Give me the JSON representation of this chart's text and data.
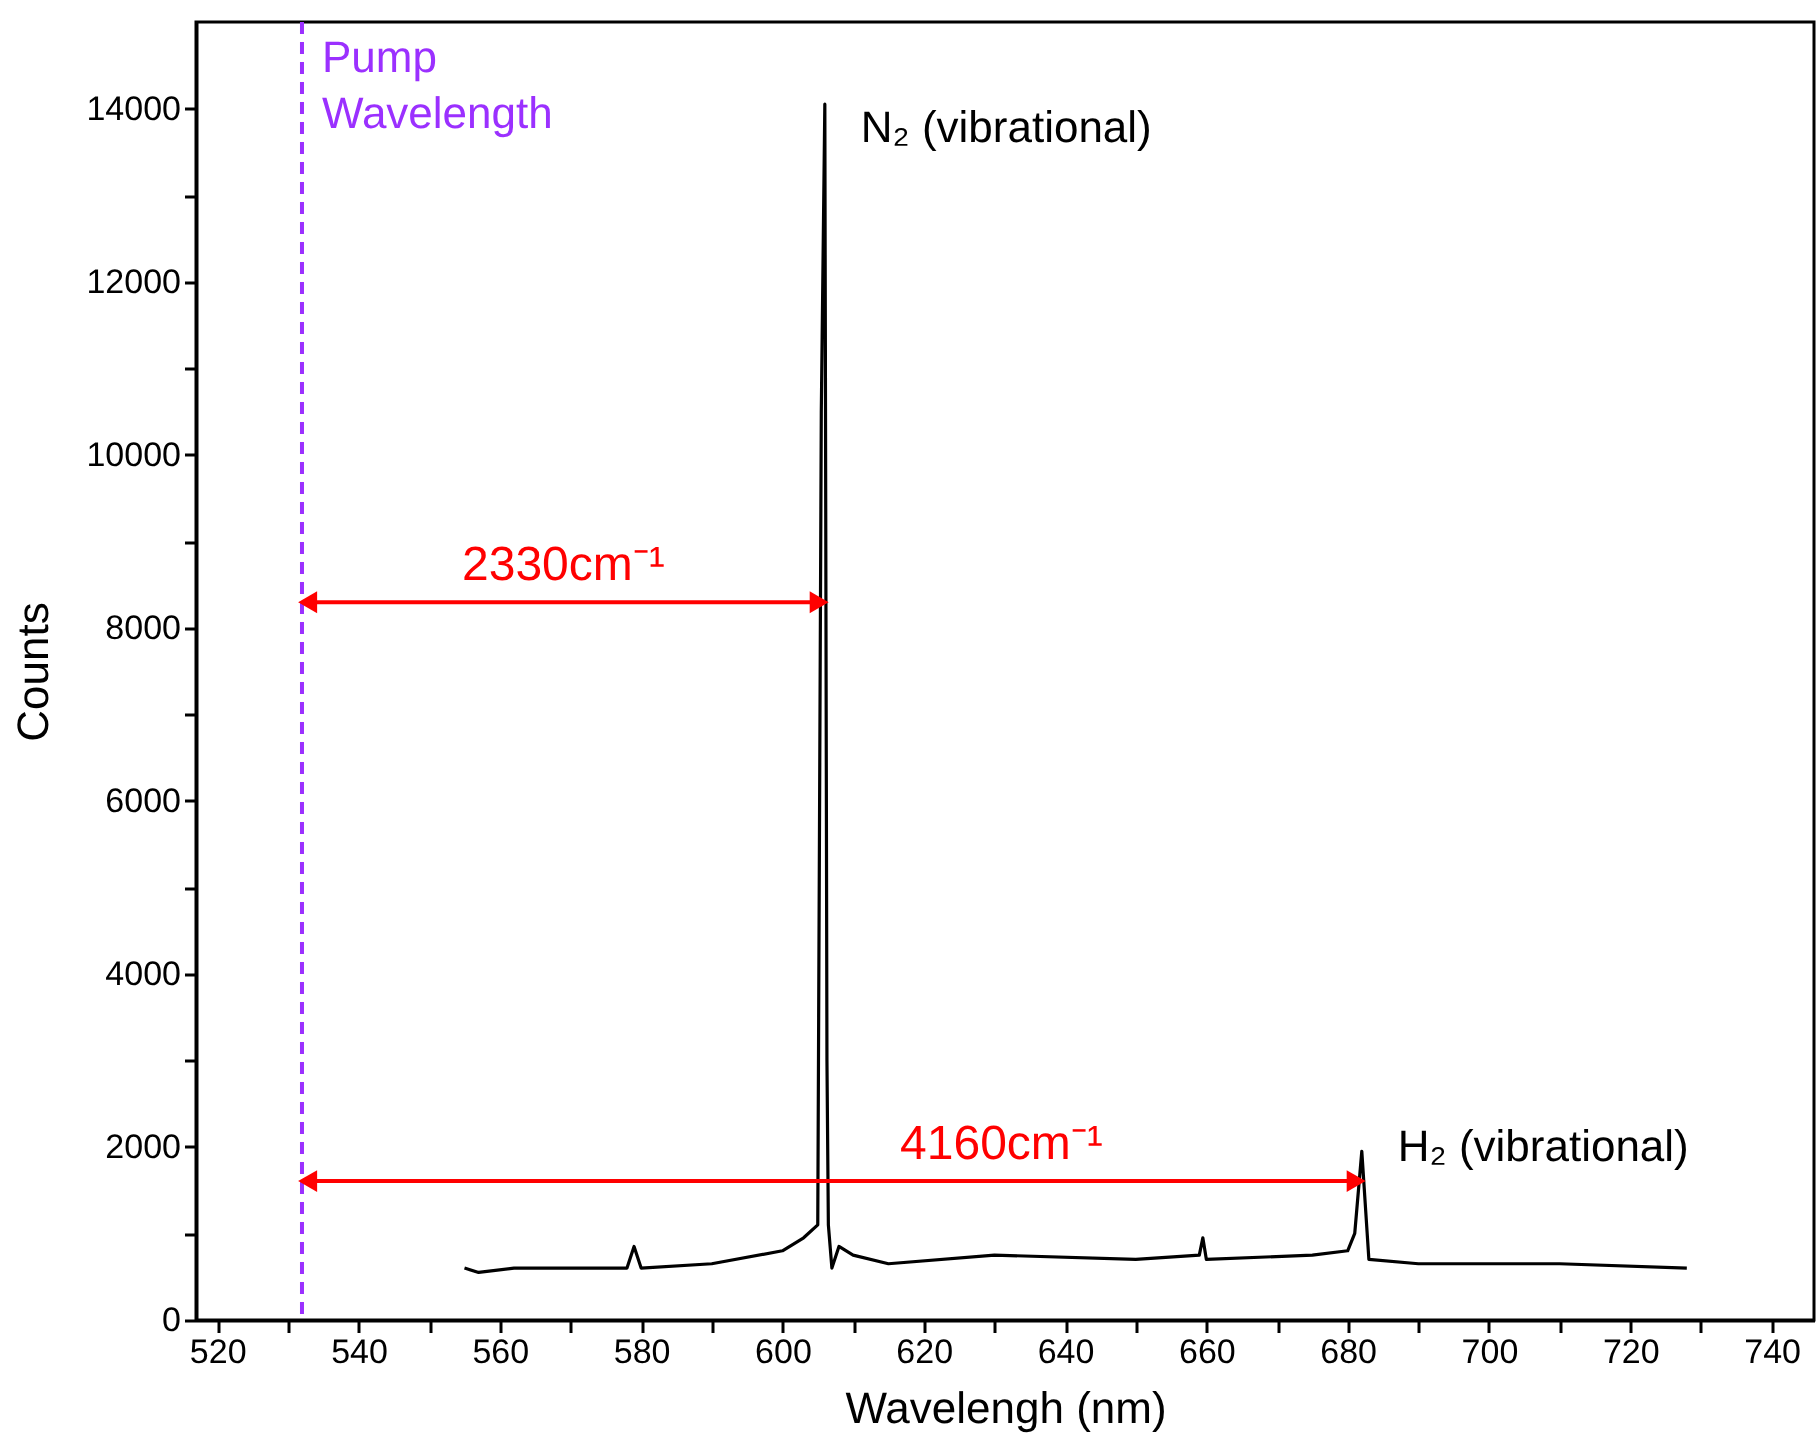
{
  "chart_data": {
    "type": "line",
    "xlabel": "Wavelengh (nm)",
    "ylabel": "Counts",
    "x": [
      555,
      557,
      562,
      570,
      578,
      579,
      580,
      590,
      600,
      603,
      605,
      605.5,
      606,
      606.3,
      606.5,
      607,
      608,
      610,
      615,
      630,
      650,
      659,
      659.5,
      660,
      675,
      680,
      681,
      682,
      683,
      690,
      700,
      710,
      728
    ],
    "series": [
      {
        "color": "#000000",
        "values": [
          600,
          550,
          600,
          600,
          600,
          850,
          600,
          650,
          800,
          950,
          1100,
          10500,
          14050,
          3000,
          1100,
          600,
          850,
          750,
          650,
          750,
          700,
          750,
          950,
          700,
          750,
          800,
          1000,
          1950,
          700,
          650,
          650,
          650,
          600
        ]
      }
    ],
    "xlim": [
      517,
      746
    ],
    "ylim": [
      0,
      15000
    ],
    "xticks": [
      520,
      {
        "value": 530,
        "label": null
      },
      540,
      {
        "value": 550,
        "label": null
      },
      560,
      {
        "value": 570,
        "label": null
      },
      580,
      {
        "value": 590,
        "label": null
      },
      600,
      {
        "value": 610,
        "label": null
      },
      620,
      {
        "value": 630,
        "label": null
      },
      640,
      {
        "value": 650,
        "label": null
      },
      660,
      {
        "value": 670,
        "label": null
      },
      680,
      {
        "value": 690,
        "label": null
      },
      700,
      {
        "value": 710,
        "label": null
      },
      720,
      {
        "value": 730,
        "label": null
      },
      740
    ],
    "yticks": [
      0,
      {
        "value": 1000,
        "label": null
      },
      2000,
      {
        "value": 3000,
        "label": null
      },
      4000,
      {
        "value": 5000,
        "label": null
      },
      6000,
      {
        "value": 7000,
        "label": null
      },
      8000,
      {
        "value": 9000,
        "label": null
      },
      10000,
      {
        "value": 11000,
        "label": null
      },
      12000,
      {
        "value": 13000,
        "label": null
      },
      14000
    ],
    "ref_lines": [
      {
        "axis": "x",
        "value": 532,
        "label": "Pump Wavelength",
        "color": "#9b30ff",
        "line_style": "dashed"
      }
    ],
    "annotations": [
      {
        "text": "N₂ (vibrational)",
        "x": 606,
        "y": 14050
      },
      {
        "text": "H₂ (vibrational)",
        "x": 682,
        "y": 1950
      },
      "2330cm⁻¹",
      "4160cm⁻¹"
    ],
    "grid": false,
    "marker": "none",
    "line_style": "solid"
  }
}
